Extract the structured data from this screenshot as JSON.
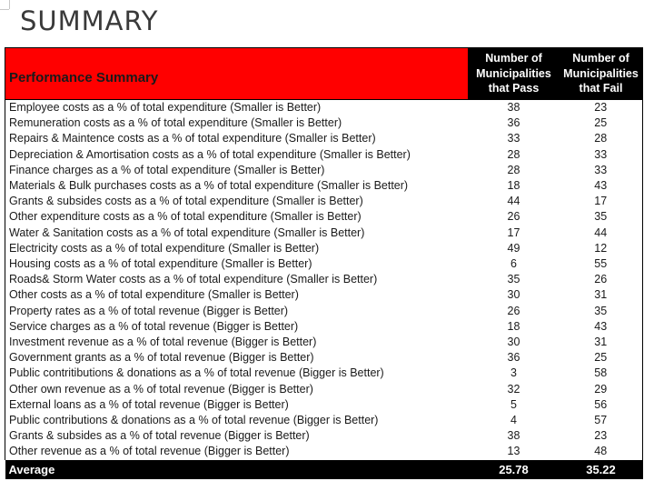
{
  "title": "SUMMARY",
  "table": {
    "header": {
      "label": "Performance Summary",
      "pass_line1": "Number of",
      "pass_line2": "Municipalities",
      "pass_line3": "that Pass",
      "fail_line1": "Number of",
      "fail_line2": "Municipalities",
      "fail_line3": "that Fail"
    },
    "rows": [
      {
        "label": "Employee costs as a % of total expenditure (Smaller is Better)",
        "pass": "38",
        "fail": "23"
      },
      {
        "label": "Remuneration costs as a % of total expenditure (Smaller is Better)",
        "pass": "36",
        "fail": "25"
      },
      {
        "label": "Repairs & Maintence costs as a % of total expenditure (Smaller is Better)",
        "pass": "33",
        "fail": "28"
      },
      {
        "label": "Depreciation & Amortisation costs as a % of total expenditure (Smaller is Better)",
        "pass": "28",
        "fail": "33"
      },
      {
        "label": "Finance charges  as a % of total expenditure (Smaller is Better)",
        "pass": "28",
        "fail": "33"
      },
      {
        "label": "Materials & Bulk purchases costs as a % of total expenditure (Smaller is Better)",
        "pass": "18",
        "fail": "43"
      },
      {
        "label": "Grants & subsides costs as a % of total expenditure (Smaller is Better)",
        "pass": "44",
        "fail": "17"
      },
      {
        "label": "Other expenditure costs as a % of total expenditure (Smaller is Better)",
        "pass": "26",
        "fail": "35"
      },
      {
        "label": "Water & Sanitation costs as a % of total expenditure (Smaller is Better)",
        "pass": "17",
        "fail": "44"
      },
      {
        "label": "Electricity costs as a % of total expenditure (Smaller is Better)",
        "pass": "49",
        "fail": "12"
      },
      {
        "label": "Housing costs as a % of total expenditure (Smaller is Better)",
        "pass": "6",
        "fail": "55"
      },
      {
        "label": "Roads& Storm Water costs as a % of total expenditure (Smaller is Better)",
        "pass": "35",
        "fail": "26"
      },
      {
        "label": "Other costs as a % of total expenditure (Smaller is Better)",
        "pass": "30",
        "fail": "31"
      },
      {
        "label": "Property rates as a % of total revenue (Bigger is Better)",
        "pass": "26",
        "fail": "35"
      },
      {
        "label": "Service charges as a % of total revenue (Bigger is Better)",
        "pass": "18",
        "fail": "43"
      },
      {
        "label": "Investment revenue as a % of total revenue (Bigger is Better)",
        "pass": "30",
        "fail": "31"
      },
      {
        "label": "Government grants as a % of total revenue (Bigger is Better)",
        "pass": "36",
        "fail": "25"
      },
      {
        "label": "Public contritibutions & donations as a % of total revenue (Bigger is Better)",
        "pass": "3",
        "fail": "58"
      },
      {
        "label": "Other own revenue as a % of total revenue (Bigger is Better)",
        "pass": "32",
        "fail": "29"
      },
      {
        "label": "External loans as a % of total revenue (Bigger is Better)",
        "pass": "5",
        "fail": "56"
      },
      {
        "label": "Public contributions & donations as a % of total revenue (Bigger is Better)",
        "pass": "4",
        "fail": "57"
      },
      {
        "label": "Grants & subsides as a % of total revenue (Bigger is Better)",
        "pass": "38",
        "fail": "23"
      },
      {
        "label": "Other revenue as a % of total revenue (Bigger is Better)",
        "pass": "13",
        "fail": "48"
      }
    ],
    "footer": {
      "label": "Average",
      "pass": "25.78",
      "fail": "35.22"
    }
  },
  "colors": {
    "header_label_bg": "#ff0000",
    "header_num_bg": "#000000",
    "footer_bg": "#000000"
  }
}
